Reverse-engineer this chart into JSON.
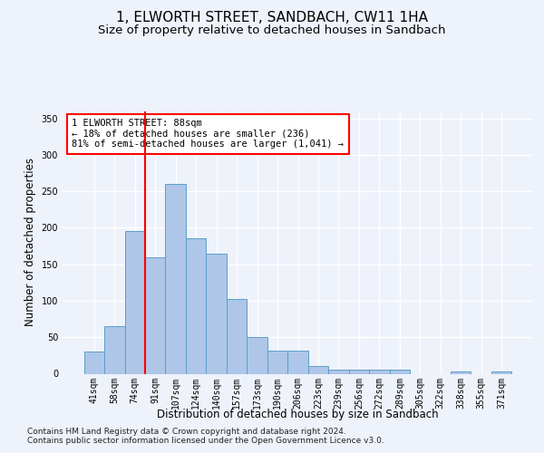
{
  "title": "1, ELWORTH STREET, SANDBACH, CW11 1HA",
  "subtitle": "Size of property relative to detached houses in Sandbach",
  "xlabel": "Distribution of detached houses by size in Sandbach",
  "ylabel": "Number of detached properties",
  "categories": [
    "41sqm",
    "58sqm",
    "74sqm",
    "91sqm",
    "107sqm",
    "124sqm",
    "140sqm",
    "157sqm",
    "173sqm",
    "190sqm",
    "206sqm",
    "223sqm",
    "239sqm",
    "256sqm",
    "272sqm",
    "289sqm",
    "305sqm",
    "322sqm",
    "338sqm",
    "355sqm",
    "371sqm"
  ],
  "values": [
    30,
    65,
    195,
    160,
    260,
    185,
    165,
    103,
    50,
    32,
    32,
    10,
    5,
    5,
    5,
    5,
    0,
    0,
    3,
    0,
    3
  ],
  "bar_color": "#aec6e8",
  "bar_edge_color": "#5a9fc8",
  "vline_color": "red",
  "vline_pos": 2.5,
  "annotation_text": "1 ELWORTH STREET: 88sqm\n← 18% of detached houses are smaller (236)\n81% of semi-detached houses are larger (1,041) →",
  "annotation_box_color": "white",
  "annotation_box_edge_color": "red",
  "ylim": [
    0,
    360
  ],
  "yticks": [
    0,
    50,
    100,
    150,
    200,
    250,
    300,
    350
  ],
  "footer_line1": "Contains HM Land Registry data © Crown copyright and database right 2024.",
  "footer_line2": "Contains public sector information licensed under the Open Government Licence v3.0.",
  "background_color": "#eef2fb",
  "grid_color": "#ffffff",
  "title_fontsize": 11,
  "subtitle_fontsize": 9.5,
  "ylabel_fontsize": 8.5,
  "xlabel_fontsize": 8.5,
  "tick_fontsize": 7,
  "annotation_fontsize": 7.5,
  "footer_fontsize": 6.5
}
